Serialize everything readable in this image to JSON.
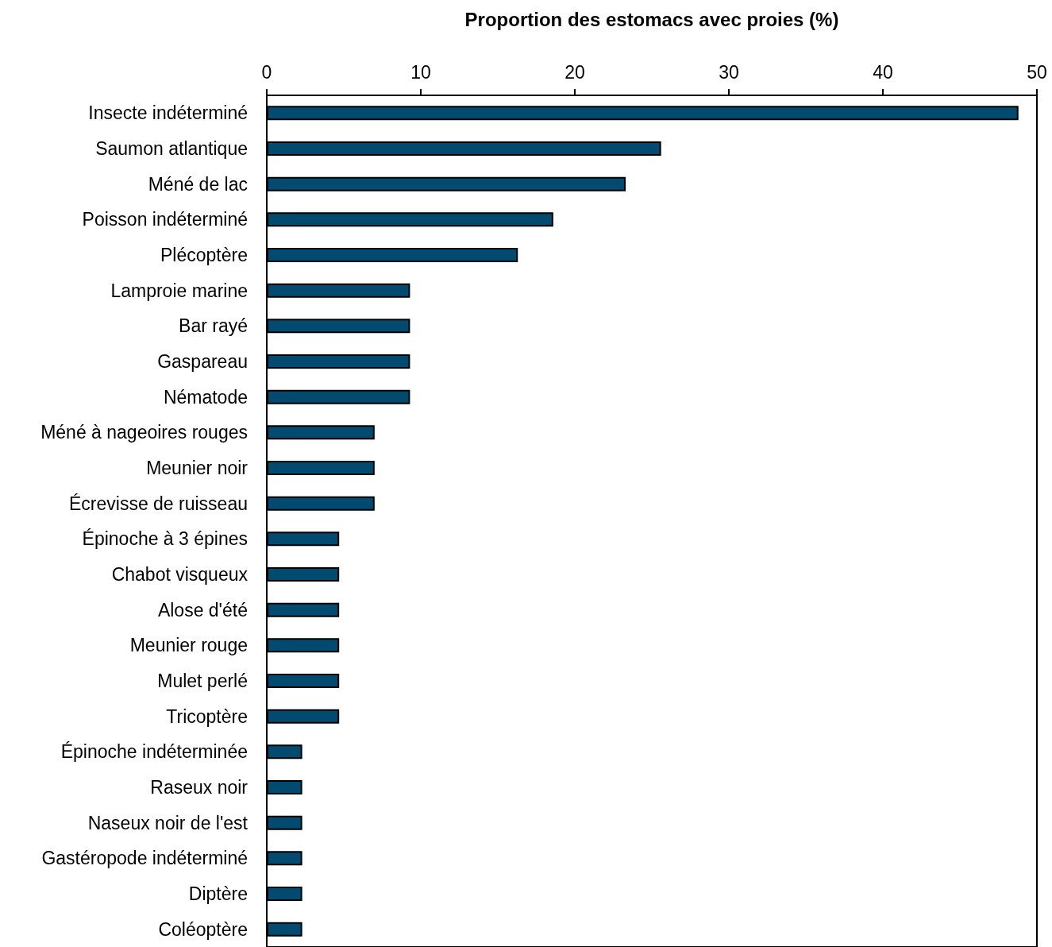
{
  "chart_data": {
    "type": "bar",
    "orientation": "horizontal",
    "xlabel": "Proportion des estomacs avec proies (%)",
    "categories": [
      "Insecte indéterminé",
      "Saumon atlantique",
      "Méné de lac",
      "Poisson indéterminé",
      "Plécoptère",
      "Lamproie marine",
      "Bar rayé",
      "Gaspareau",
      "Nématode",
      "Méné à nageoires rouges",
      "Meunier noir",
      "Écrevisse de ruisseau",
      "Épinoche à 3 épines",
      "Chabot visqueux",
      "Alose d'été",
      "Meunier rouge",
      "Mulet perlé",
      "Tricoptère",
      "Épinoche indéterminée",
      "Raseux noir",
      "Naseux noir de l'est",
      "Gastéropode indéterminé",
      "Diptère",
      "Coléoptère"
    ],
    "values": [
      48.8,
      25.6,
      23.3,
      18.6,
      16.3,
      9.3,
      9.3,
      9.3,
      9.3,
      7.0,
      7.0,
      7.0,
      4.7,
      4.7,
      4.7,
      4.7,
      4.7,
      4.7,
      2.3,
      2.3,
      2.3,
      2.3,
      2.3,
      2.3
    ],
    "color": "#034a70",
    "xlim": [
      0,
      50
    ],
    "xticks": [
      0,
      10,
      20,
      30,
      40,
      50
    ]
  }
}
